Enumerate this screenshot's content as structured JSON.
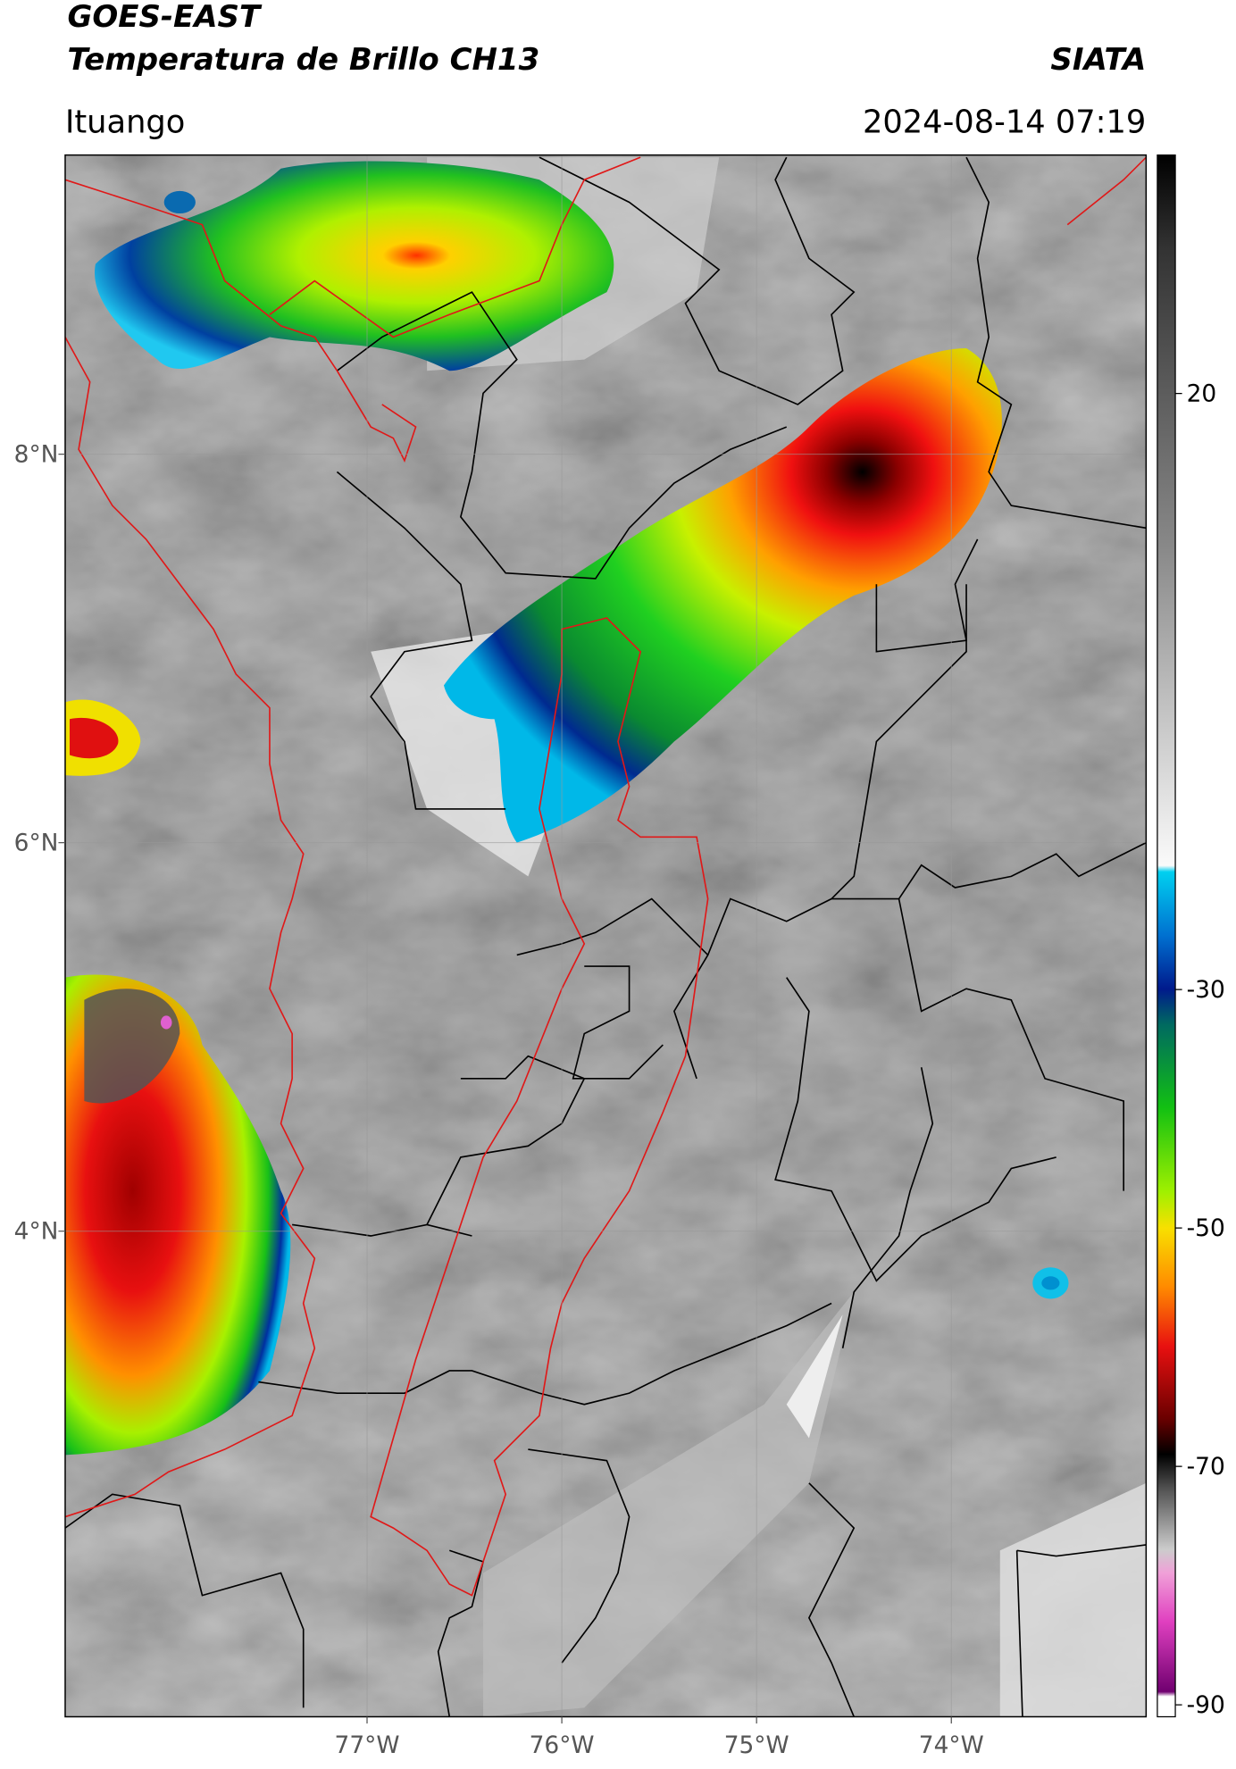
{
  "header": {
    "title": "GOES-EAST",
    "subtitle": "Temperatura de Brillo CH13",
    "source": "SIATA",
    "location": "Ituango",
    "datetime": "2024-08-14 07:19"
  },
  "map": {
    "xlim": [
      -78.55,
      -73.0
    ],
    "ylim": [
      1.5,
      9.54
    ],
    "xticks": [
      {
        "value": -77,
        "label": "77°W"
      },
      {
        "value": -76,
        "label": "76°W"
      },
      {
        "value": -75,
        "label": "75°W"
      },
      {
        "value": -74,
        "label": "74°W"
      }
    ],
    "yticks": [
      {
        "value": 8,
        "label": "8°N"
      },
      {
        "value": 6,
        "label": "6°N"
      },
      {
        "value": 4,
        "label": "4°N"
      }
    ],
    "grid": true,
    "colorbar": {
      "lim": [
        -91,
        40
      ],
      "ticks": [
        20,
        -30,
        -50,
        -70,
        -90
      ]
    }
  }
}
